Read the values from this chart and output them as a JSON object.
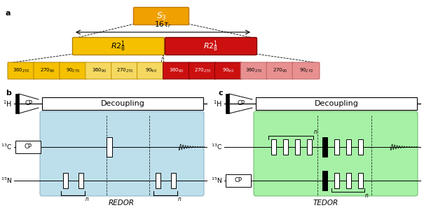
{
  "title_a": "a",
  "title_b": "b",
  "title_c": "c",
  "s3_label": "$S_3$",
  "tau_label": "$16\\tau_r$",
  "r2a_label": "$R2_8^1$",
  "r2b_label": "$R2_8^1$",
  "pulse_labels": [
    "$360_{270}$",
    "$270_{90}$",
    "$90_{270}$",
    "$360_{90}$",
    "$270_{270}$",
    "$90_{90}$",
    "$360_{90}$",
    "$270_{270}$",
    "$90_{90}$",
    "$360_{270}$",
    "$270_{90}$",
    "$90_{270}$"
  ],
  "yellow_color": "#F5C000",
  "orange_color": "#F0A000",
  "red_color": "#CC1010",
  "pink_color": "#E89090",
  "light_yellow": "#F5D860",
  "bg_color": "#ffffff",
  "redor_bg": "#ADD8E6",
  "tedor_bg": "#90EE90",
  "H1_label": "$^1$H",
  "C13_label": "$^{13}$C",
  "N15_label": "$^{15}$N",
  "decoupling_label": "Decoupling",
  "cp_label": "CP",
  "redor_label": "REDOR",
  "tedor_label": "TEDOR"
}
